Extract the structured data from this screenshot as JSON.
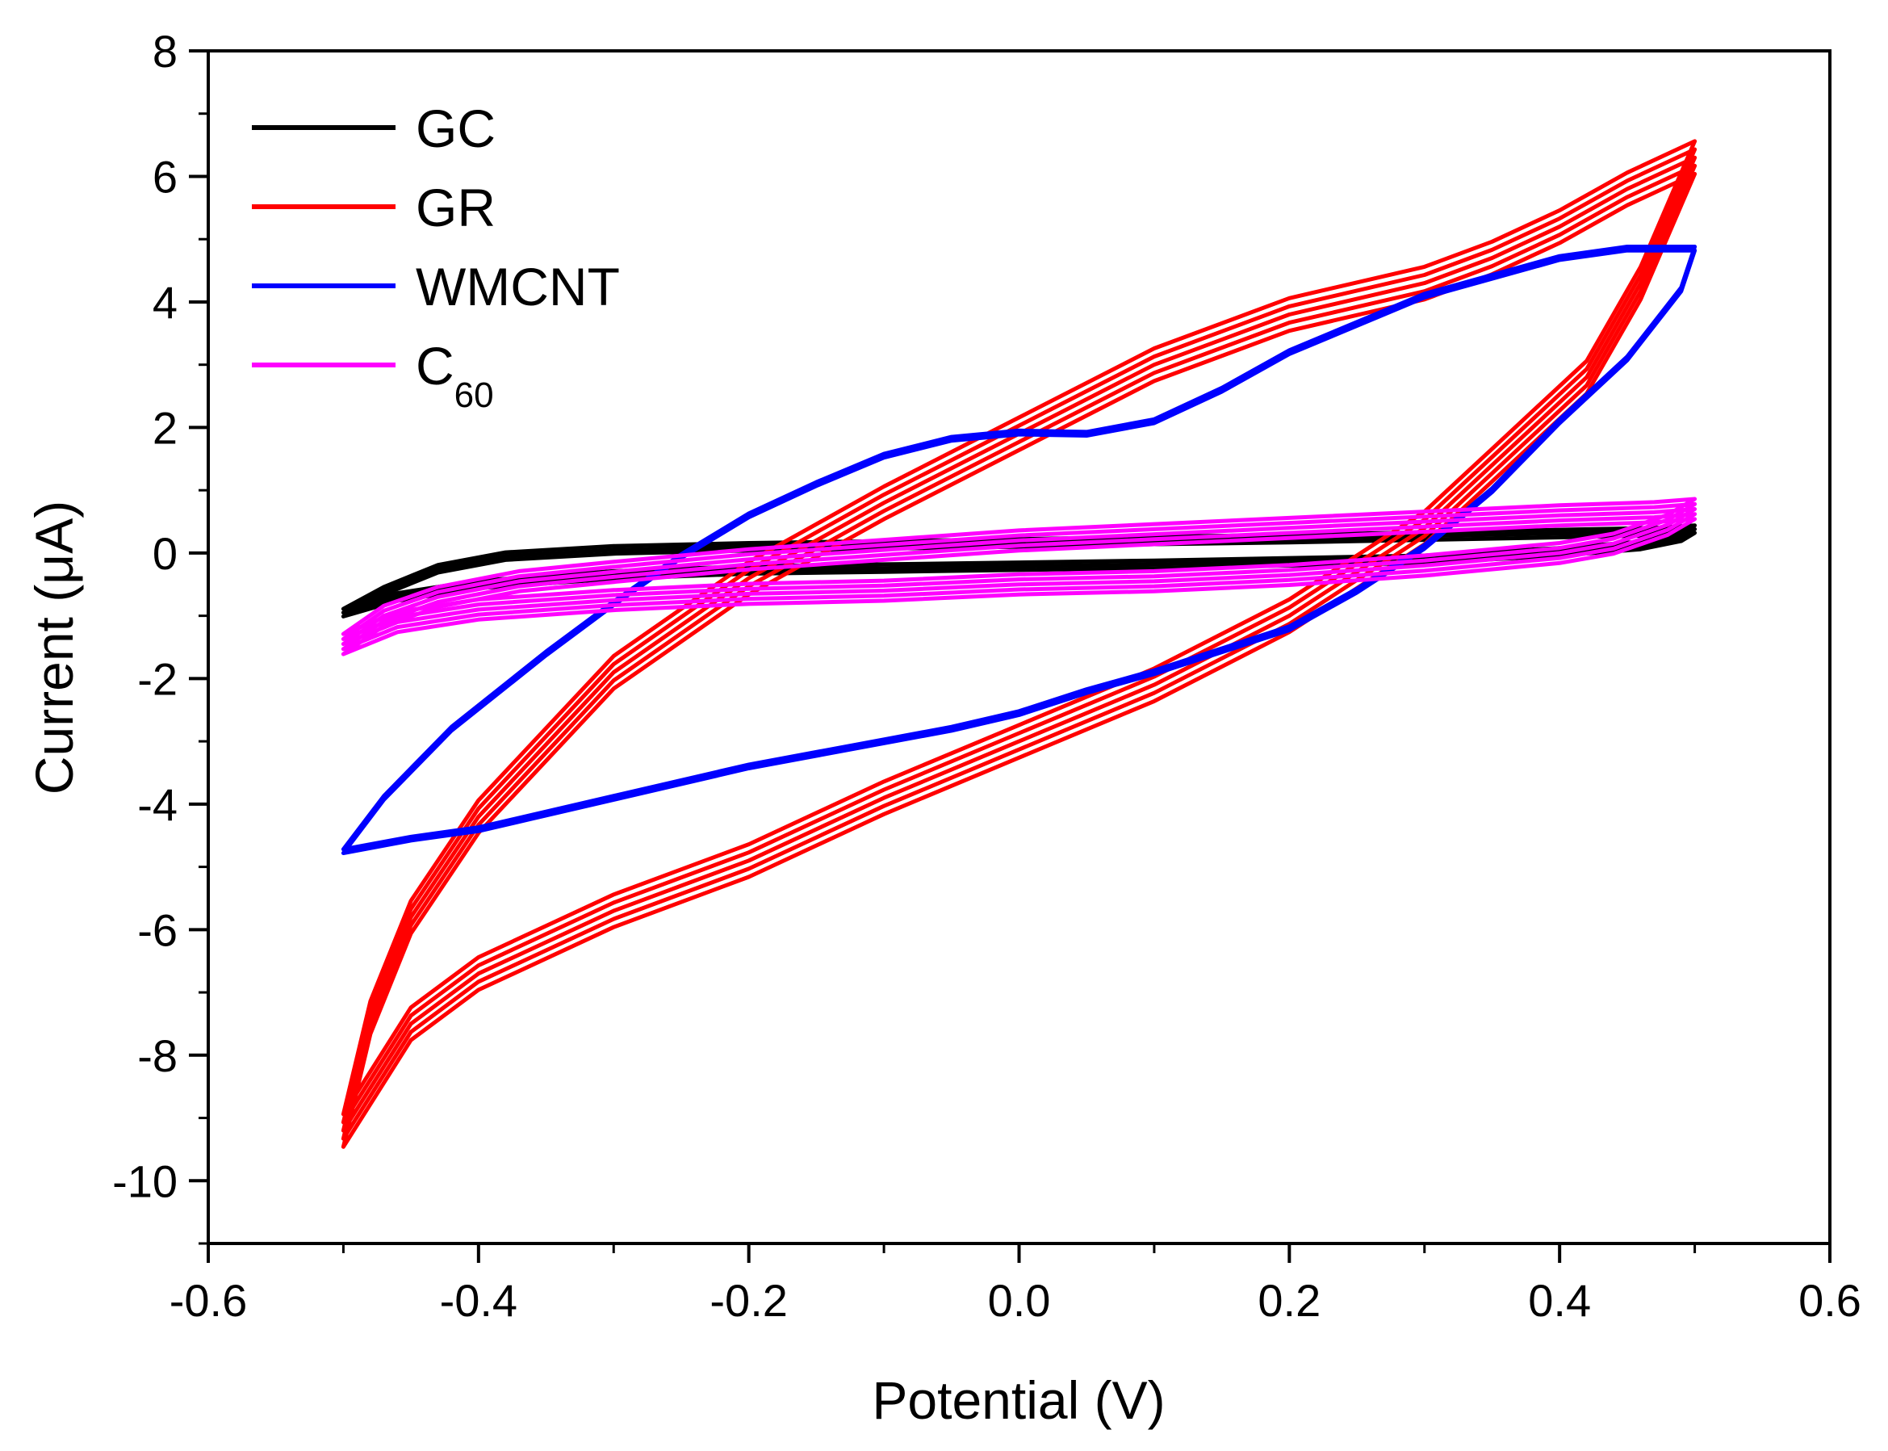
{
  "chart_data": {
    "type": "line",
    "title": "",
    "xlabel": "Potential (V)",
    "ylabel": "Current (μA)",
    "xlim": [
      -0.6,
      0.6
    ],
    "ylim": [
      -11,
      8
    ],
    "x_ticks": [
      -0.6,
      -0.4,
      -0.2,
      0.0,
      0.2,
      0.4,
      0.6
    ],
    "x_tick_labels": [
      "-0.6",
      "-0.4",
      "-0.2",
      "0.0",
      "0.2",
      "0.4",
      "0.6"
    ],
    "y_ticks": [
      -10,
      -8,
      -6,
      -4,
      -2,
      0,
      2,
      4,
      6,
      8
    ],
    "y_tick_labels": [
      "-10",
      "-8",
      "-6",
      "-4",
      "-2",
      "0",
      "2",
      "4",
      "6",
      "8"
    ],
    "grid": false,
    "legend_position": "top-left",
    "series": [
      {
        "name": "GC",
        "label_main": "GC",
        "label_sub": "",
        "color": "#000000",
        "cycles": 3,
        "cycle_offset": 0.06,
        "forward": [
          [
            -0.5,
            -0.95
          ],
          [
            -0.47,
            -0.6
          ],
          [
            -0.43,
            -0.25
          ],
          [
            -0.38,
            -0.05
          ],
          [
            -0.3,
            0.05
          ],
          [
            -0.2,
            0.1
          ],
          [
            -0.1,
            0.13
          ],
          [
            0.0,
            0.16
          ],
          [
            0.1,
            0.2
          ],
          [
            0.2,
            0.23
          ],
          [
            0.3,
            0.27
          ],
          [
            0.4,
            0.31
          ],
          [
            0.47,
            0.34
          ],
          [
            0.5,
            0.38
          ]
        ],
        "reverse": [
          [
            0.5,
            0.38
          ],
          [
            0.49,
            0.25
          ],
          [
            0.46,
            0.12
          ],
          [
            0.4,
            0.02
          ],
          [
            0.3,
            -0.1
          ],
          [
            0.2,
            -0.14
          ],
          [
            0.1,
            -0.18
          ],
          [
            0.0,
            -0.21
          ],
          [
            -0.1,
            -0.24
          ],
          [
            -0.2,
            -0.27
          ],
          [
            -0.3,
            -0.35
          ],
          [
            -0.4,
            -0.5
          ],
          [
            -0.46,
            -0.7
          ],
          [
            -0.5,
            -0.95
          ]
        ]
      },
      {
        "name": "GR",
        "label_main": "GR",
        "label_sub": "",
        "color": "#ff0000",
        "cycles": 5,
        "cycle_offset": 0.13,
        "forward": [
          [
            -0.5,
            -9.2
          ],
          [
            -0.48,
            -7.4
          ],
          [
            -0.45,
            -5.8
          ],
          [
            -0.4,
            -4.2
          ],
          [
            -0.3,
            -1.9
          ],
          [
            -0.2,
            -0.4
          ],
          [
            -0.1,
            0.8
          ],
          [
            0.0,
            1.9
          ],
          [
            0.1,
            3.0
          ],
          [
            0.2,
            3.8
          ],
          [
            0.3,
            4.3
          ],
          [
            0.35,
            4.7
          ],
          [
            0.4,
            5.2
          ],
          [
            0.45,
            5.8
          ],
          [
            0.5,
            6.3
          ]
        ],
        "reverse": [
          [
            0.5,
            6.3
          ],
          [
            0.49,
            5.8
          ],
          [
            0.46,
            4.3
          ],
          [
            0.42,
            2.8
          ],
          [
            0.35,
            1.4
          ],
          [
            0.3,
            0.4
          ],
          [
            0.2,
            -1.0
          ],
          [
            0.1,
            -2.1
          ],
          [
            0.0,
            -3.0
          ],
          [
            -0.1,
            -3.9
          ],
          [
            -0.2,
            -4.9
          ],
          [
            -0.3,
            -5.7
          ],
          [
            -0.4,
            -6.7
          ],
          [
            -0.45,
            -7.5
          ],
          [
            -0.5,
            -9.2
          ]
        ]
      },
      {
        "name": "WMCNT",
        "label_main": "WMCNT",
        "label_sub": "",
        "color": "#0000ff",
        "cycles": 2,
        "cycle_offset": 0.06,
        "forward": [
          [
            -0.5,
            -4.75
          ],
          [
            -0.47,
            -3.9
          ],
          [
            -0.42,
            -2.8
          ],
          [
            -0.35,
            -1.6
          ],
          [
            -0.3,
            -0.8
          ],
          [
            -0.25,
            -0.05
          ],
          [
            -0.2,
            0.6
          ],
          [
            -0.15,
            1.1
          ],
          [
            -0.1,
            1.55
          ],
          [
            -0.05,
            1.82
          ],
          [
            0.0,
            1.92
          ],
          [
            0.05,
            1.9
          ],
          [
            0.1,
            2.1
          ],
          [
            0.15,
            2.6
          ],
          [
            0.2,
            3.2
          ],
          [
            0.3,
            4.1
          ],
          [
            0.4,
            4.7
          ],
          [
            0.45,
            4.85
          ],
          [
            0.5,
            4.85
          ]
        ],
        "reverse": [
          [
            0.5,
            4.85
          ],
          [
            0.49,
            4.2
          ],
          [
            0.45,
            3.1
          ],
          [
            0.4,
            2.1
          ],
          [
            0.35,
            1.0
          ],
          [
            0.3,
            0.1
          ],
          [
            0.25,
            -0.6
          ],
          [
            0.2,
            -1.2
          ],
          [
            0.1,
            -1.9
          ],
          [
            0.05,
            -2.2
          ],
          [
            0.0,
            -2.55
          ],
          [
            -0.05,
            -2.8
          ],
          [
            -0.1,
            -3.0
          ],
          [
            -0.2,
            -3.4
          ],
          [
            -0.3,
            -3.9
          ],
          [
            -0.4,
            -4.4
          ],
          [
            -0.45,
            -4.55
          ],
          [
            -0.5,
            -4.75
          ]
        ]
      },
      {
        "name": "C60",
        "label_main": "C",
        "label_sub": "60",
        "color": "#ff00ff",
        "cycles": 5,
        "cycle_offset": 0.08,
        "forward": [
          [
            -0.5,
            -1.45
          ],
          [
            -0.47,
            -1.0
          ],
          [
            -0.43,
            -0.7
          ],
          [
            -0.37,
            -0.45
          ],
          [
            -0.3,
            -0.3
          ],
          [
            -0.2,
            -0.1
          ],
          [
            -0.1,
            0.05
          ],
          [
            0.0,
            0.2
          ],
          [
            0.1,
            0.3
          ],
          [
            0.2,
            0.4
          ],
          [
            0.3,
            0.5
          ],
          [
            0.4,
            0.6
          ],
          [
            0.47,
            0.65
          ],
          [
            0.5,
            0.7
          ]
        ],
        "reverse": [
          [
            0.5,
            0.7
          ],
          [
            0.48,
            0.45
          ],
          [
            0.44,
            0.15
          ],
          [
            0.4,
            0.0
          ],
          [
            0.3,
            -0.2
          ],
          [
            0.2,
            -0.35
          ],
          [
            0.1,
            -0.45
          ],
          [
            0.0,
            -0.5
          ],
          [
            -0.1,
            -0.6
          ],
          [
            -0.2,
            -0.65
          ],
          [
            -0.3,
            -0.75
          ],
          [
            -0.4,
            -0.9
          ],
          [
            -0.46,
            -1.1
          ],
          [
            -0.5,
            -1.45
          ]
        ]
      }
    ]
  }
}
